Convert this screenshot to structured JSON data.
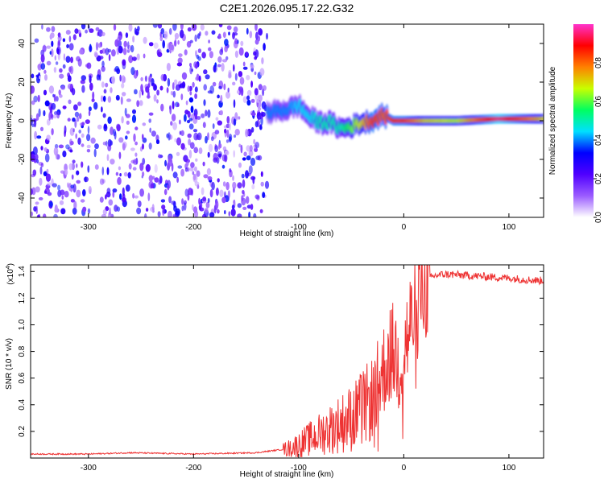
{
  "title": "C2E1.2026.095.17.22.G32",
  "spectrogram": {
    "xlabel": "Height of straight line (km)",
    "ylabel": "Frequency (Hz)",
    "xlim": [
      -355,
      133
    ],
    "ylim": [
      -50,
      50
    ],
    "xticks": [
      -300,
      -200,
      -100,
      0,
      100
    ],
    "yticks": [
      -40,
      -20,
      0,
      20,
      40
    ],
    "colorbar": {
      "label": "Normalized spectral amplitude",
      "range": [
        0,
        1
      ],
      "ticks": [
        "0.0",
        "0.2",
        "0.4",
        "0.6",
        "0.8"
      ],
      "tick_values": [
        0,
        0.2,
        0.4,
        0.6,
        0.8
      ],
      "colors": [
        "#ffffff",
        "#9b5cff",
        "#5000ff",
        "#0000ff",
        "#00e0ff",
        "#00ff60",
        "#c8ff00",
        "#ff8000",
        "#ff0000",
        "#ff33cc"
      ]
    }
  },
  "chart_data": [
    {
      "type": "heatmap",
      "xlabel": "Height of straight line (km)",
      "ylabel": "Frequency (Hz)",
      "xlim": [
        -355,
        133
      ],
      "ylim": [
        -50,
        50
      ],
      "description_of_regions": [
        {
          "x_range": [
            -355,
            -130
          ],
          "frequency_range": [
            -50,
            50
          ],
          "amplitude": 0.1
        },
        {
          "x_range": [
            -130,
            -15
          ],
          "center_frequency": 0,
          "frequency_spread": 10,
          "amplitude": 0.45
        },
        {
          "x_range": [
            -15,
            133
          ],
          "center_frequency": 1,
          "frequency_spread": 3,
          "amplitude": 0.75
        }
      ],
      "ridge": {
        "x": [
          -130,
          -110,
          -100,
          -90,
          -80,
          -70,
          -60,
          -50,
          -40,
          -30,
          -20,
          -10,
          0,
          20,
          50,
          90,
          133
        ],
        "frequency": [
          4,
          6,
          8,
          2,
          -1,
          -1,
          -4,
          -3,
          -1,
          0,
          3,
          0,
          0,
          0,
          0,
          1,
          1
        ],
        "amplitude": [
          0.4,
          0.4,
          0.45,
          0.45,
          0.5,
          0.5,
          0.5,
          0.6,
          0.7,
          0.85,
          0.8,
          0.85,
          0.85,
          0.7,
          0.65,
          0.95,
          0.7
        ]
      }
    },
    {
      "type": "line",
      "xlabel": "Height of straight line (km)",
      "ylabel": "SNR (10 * v/v)",
      "y_scale_label": "(x10",
      "y_scale_exp": "4",
      "xlim": [
        -355,
        133
      ],
      "ylim": [
        0,
        1.45
      ],
      "xticks": [
        -300,
        -200,
        -100,
        0,
        100
      ],
      "yticks": [
        0.2,
        0.4,
        0.6,
        0.8,
        1.0,
        1.2,
        1.4
      ],
      "series": [
        {
          "color": "#ee3333",
          "x": [
            -355,
            -300,
            -260,
            -200,
            -140,
            -110,
            -100,
            -90,
            -80,
            -70,
            -60,
            -50,
            -40,
            -30,
            -25,
            -20,
            -15,
            -10,
            -5,
            0,
            5,
            10,
            15,
            20,
            30,
            40,
            60,
            80,
            100,
            115,
            133
          ],
          "y": [
            0.03,
            0.03,
            0.04,
            0.03,
            0.04,
            0.07,
            0.1,
            0.14,
            0.18,
            0.22,
            0.26,
            0.3,
            0.36,
            0.45,
            0.55,
            0.65,
            0.75,
            0.8,
            0.72,
            0.8,
            0.95,
            1.1,
            1.25,
            1.33,
            1.37,
            1.38,
            1.37,
            1.36,
            1.35,
            1.34,
            1.33
          ]
        }
      ]
    }
  ]
}
